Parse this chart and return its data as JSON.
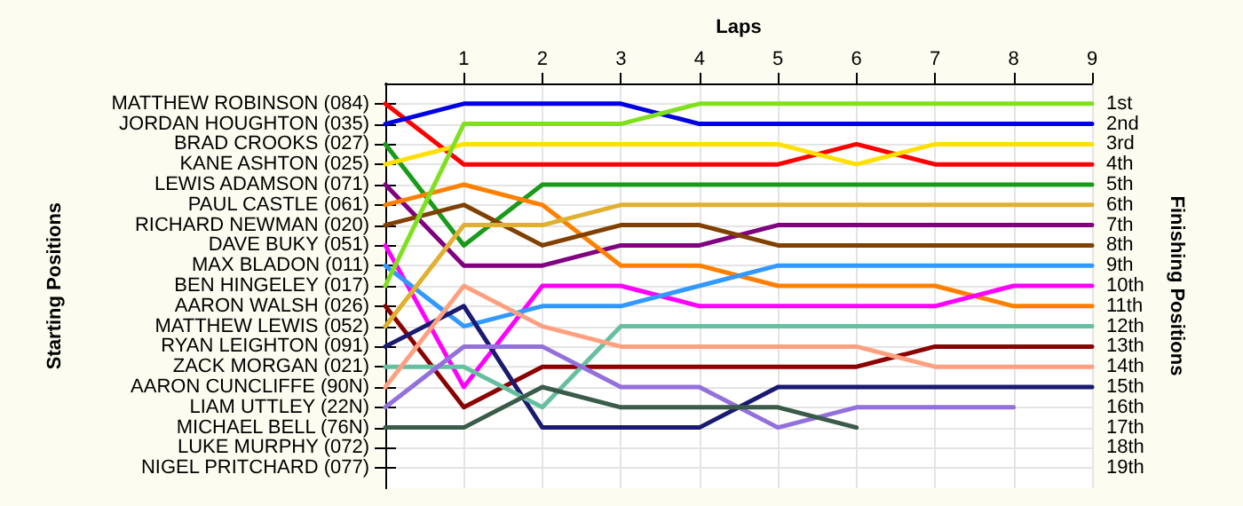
{
  "chart_data": {
    "type": "line",
    "xlabel": "Laps",
    "ylabel": "Finishing Positions",
    "x": [
      0,
      1,
      2,
      3,
      4,
      5,
      6,
      7,
      8,
      9
    ],
    "xlim": [
      0,
      9
    ],
    "xticks": [
      1,
      2,
      3,
      4,
      5,
      6,
      7,
      8,
      9
    ],
    "ylim": [
      20,
      0
    ],
    "yticks": [
      {
        "value": 1,
        "label": "1st"
      },
      {
        "value": 2,
        "label": "2nd"
      },
      {
        "value": 3,
        "label": "3rd"
      },
      {
        "value": 4,
        "label": "4th"
      },
      {
        "value": 5,
        "label": "5th"
      },
      {
        "value": 6,
        "label": "6th"
      },
      {
        "value": 7,
        "label": "7th"
      },
      {
        "value": 8,
        "label": "8th"
      },
      {
        "value": 9,
        "label": "9th"
      },
      {
        "value": 10,
        "label": "10th"
      },
      {
        "value": 11,
        "label": "11th"
      },
      {
        "value": 12,
        "label": "12th"
      },
      {
        "value": 13,
        "label": "13th"
      },
      {
        "value": 14,
        "label": "14th"
      },
      {
        "value": 15,
        "label": "15th"
      },
      {
        "value": 16,
        "label": "16th"
      },
      {
        "value": 17,
        "label": "17th"
      },
      {
        "value": 18,
        "label": "18th"
      },
      {
        "value": 19,
        "label": "19th"
      }
    ],
    "annotations": [
      "MATTHEW ROBINSON (084)",
      "JORDAN HOUGHTON (035)",
      "BRAD CROOKS (027)",
      "KANE ASHTON (025)",
      "LEWIS ADAMSON (071)",
      "PAUL CASTLE (061)",
      "RICHARD NEWMAN (020)",
      "DAVE BUKY (051)",
      "MAX BLADON (011)",
      "BEN HINGELEY (017)",
      "AARON WALSH (026)",
      "MATTHEW LEWIS (052)",
      "RYAN LEIGHTON (091)",
      "ZACK MORGAN (021)",
      "AARON CUNCLIFFE (90N)",
      "LIAM UTTLEY (22N)",
      "MICHAEL BELL (76N)",
      "LUKE MURPHY (072)",
      "NIGEL PRITCHARD (077)",
      "Starting Positions"
    ],
    "grid": true,
    "marker": "none",
    "line_style": "solid",
    "series": [
      {
        "color": "#ff0000",
        "values": [
          1,
          4,
          4,
          4,
          4,
          4,
          3,
          4,
          4,
          4
        ]
      },
      {
        "color": "#0000e0",
        "values": [
          2,
          1,
          1,
          1,
          2,
          2,
          2,
          2,
          2,
          2
        ]
      },
      {
        "color": "#1a9a1a",
        "values": [
          3,
          8,
          5,
          5,
          5,
          5,
          5,
          5,
          5,
          5
        ]
      },
      {
        "color": "#ffe000",
        "values": [
          4,
          3,
          3,
          3,
          3,
          3,
          4,
          3,
          3,
          3
        ]
      },
      {
        "color": "#800080",
        "values": [
          5,
          9,
          9,
          8,
          8,
          7,
          7,
          7,
          7,
          7
        ]
      },
      {
        "color": "#ff8000",
        "values": [
          6,
          5,
          6,
          9,
          9,
          10,
          10,
          10,
          11,
          11
        ]
      },
      {
        "color": "#804000",
        "values": [
          7,
          6,
          8,
          7,
          7,
          8,
          8,
          8,
          8,
          8
        ]
      },
      {
        "color": "#ff00ff",
        "values": [
          8,
          15,
          10,
          10,
          11,
          11,
          11,
          11,
          10,
          10
        ]
      },
      {
        "color": "#3399ff",
        "values": [
          9,
          12,
          11,
          11,
          10,
          9,
          9,
          9,
          9,
          9
        ]
      },
      {
        "color": "#80e020",
        "values": [
          10,
          2,
          2,
          2,
          1,
          1,
          1,
          1,
          1,
          1
        ]
      },
      {
        "color": "#8b0000",
        "values": [
          11,
          16,
          14,
          14,
          14,
          14,
          14,
          13,
          13,
          13
        ]
      },
      {
        "color": "#e0b030",
        "values": [
          12,
          7,
          7,
          6,
          6,
          6,
          6,
          6,
          6,
          6
        ]
      },
      {
        "color": "#1a1a70",
        "values": [
          13,
          11,
          17,
          17,
          17,
          15,
          15,
          15,
          15,
          15
        ]
      },
      {
        "color": "#66c0a0",
        "values": [
          14,
          14,
          16,
          12,
          12,
          12,
          12,
          12,
          12,
          12
        ]
      },
      {
        "color": "#ffa080",
        "values": [
          15,
          10,
          12,
          13,
          13,
          13,
          13,
          14,
          14,
          14
        ]
      },
      {
        "color": "#9370db",
        "values": [
          16,
          13,
          13,
          15,
          15,
          17,
          16,
          16,
          16,
          null
        ]
      },
      {
        "color": "#3a5a4a",
        "values": [
          17,
          17,
          15,
          16,
          16,
          16,
          17,
          null,
          null,
          null
        ]
      }
    ]
  }
}
